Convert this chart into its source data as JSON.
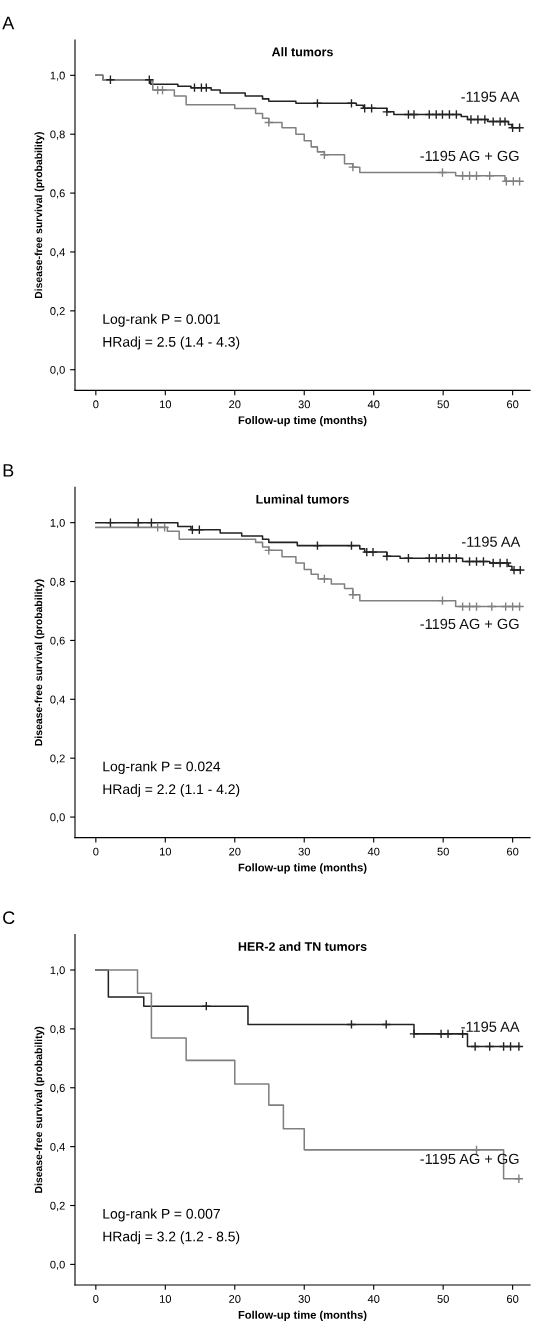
{
  "chart_data": [
    {
      "type": "step",
      "title": "All tumors",
      "xlabel": "Follow-up time (months)",
      "ylabel": "Disease-free survival (probability)",
      "xlim": [
        -3,
        62.5
      ],
      "xticks": [
        0,
        10,
        20,
        30,
        40,
        50,
        60
      ],
      "ylim": [
        -0.07,
        1.12
      ],
      "yticks": [
        {
          "value": 0.0,
          "label": "0,0"
        },
        {
          "value": 0.2,
          "label": "0,2"
        },
        {
          "value": 0.4,
          "label": "0,4"
        },
        {
          "value": 0.6,
          "label": "0,6"
        },
        {
          "value": 0.8,
          "label": "0,8"
        },
        {
          "value": 1.0,
          "label": "1,0"
        }
      ],
      "grid": false,
      "legend": false,
      "annotations": [
        "A",
        "Log-rank P = 0.001",
        "HRadj = 2.5 (1.4 - 4.3)"
      ],
      "series": [
        {
          "name": "-1195 AA",
          "color": "#222222",
          "x": [
            0,
            1,
            7.9,
            11.8,
            13.7,
            16.6,
            17.9,
            21.5,
            24,
            24.9,
            28.8,
            37.5,
            38.5,
            41.9,
            42.9,
            52.6,
            53.5,
            56.4,
            59.4,
            59.9,
            61
          ],
          "values": [
            1.0,
            0.985,
            0.97,
            0.963,
            0.958,
            0.95,
            0.94,
            0.93,
            0.92,
            0.912,
            0.905,
            0.898,
            0.888,
            0.876,
            0.867,
            0.86,
            0.85,
            0.843,
            0.833,
            0.822,
            0.822
          ]
        },
        {
          "type": "scatter",
          "marker": "cross",
          "color": "#222222",
          "x": [
            2.1,
            7.7,
            14.2,
            15.2,
            15.9,
            31.9,
            36.8,
            38.7,
            39.7,
            41.9,
            45,
            45.8,
            48,
            49,
            49.9,
            50.9,
            51.9,
            54,
            55,
            56,
            57.2,
            58.2,
            58.9,
            60,
            61
          ],
          "values": [
            0.985,
            0.985,
            0.958,
            0.958,
            0.958,
            0.905,
            0.905,
            0.888,
            0.888,
            0.876,
            0.867,
            0.867,
            0.867,
            0.867,
            0.867,
            0.867,
            0.867,
            0.85,
            0.85,
            0.85,
            0.843,
            0.843,
            0.843,
            0.822,
            0.822
          ]
        },
        {
          "name": "-1195 AG + GG",
          "color": "#808080",
          "x": [
            0,
            1,
            8.2,
            11.3,
            13,
            20,
            23,
            24,
            24.9,
            26.8,
            28.8,
            30,
            31,
            31.9,
            32.9,
            35.8,
            37,
            38,
            51.8,
            58.9,
            61
          ],
          "values": [
            1.0,
            0.985,
            0.95,
            0.93,
            0.9,
            0.887,
            0.87,
            0.854,
            0.84,
            0.822,
            0.8,
            0.778,
            0.757,
            0.74,
            0.73,
            0.7,
            0.688,
            0.67,
            0.659,
            0.64,
            0.64
          ]
        },
        {
          "type": "scatter",
          "marker": "cross",
          "color": "#808080",
          "x": [
            8.9,
            9.6,
            24.9,
            32.9,
            37,
            49.9,
            52.8,
            53.8,
            54.8,
            56.7,
            59.1,
            60.1,
            61
          ],
          "values": [
            0.95,
            0.95,
            0.84,
            0.73,
            0.688,
            0.67,
            0.659,
            0.659,
            0.659,
            0.659,
            0.64,
            0.64,
            0.64
          ]
        }
      ]
    },
    {
      "type": "step",
      "title": "Luminal tumors",
      "xlabel": "Follow-up time (months)",
      "ylabel": "Disease-free survival (probability)",
      "xlim": [
        -3,
        62.5
      ],
      "xticks": [
        0,
        10,
        20,
        30,
        40,
        50,
        60
      ],
      "ylim": [
        -0.07,
        1.12
      ],
      "yticks": [
        {
          "value": 0.0,
          "label": "0,0"
        },
        {
          "value": 0.2,
          "label": "0,2"
        },
        {
          "value": 0.4,
          "label": "0,4"
        },
        {
          "value": 0.6,
          "label": "0,6"
        },
        {
          "value": 0.8,
          "label": "0,8"
        },
        {
          "value": 1.0,
          "label": "1,0"
        }
      ],
      "grid": false,
      "legend": false,
      "annotations": [
        "B",
        "Log-rank P = 0.024",
        "HRadj = 2.2 (1.1 - 4.2)"
      ],
      "series": [
        {
          "name": "-1195 AA",
          "color": "#222222",
          "x": [
            0,
            11.8,
            13.7,
            17.9,
            21,
            24,
            24.9,
            29,
            38,
            38.7,
            41.9,
            43.8,
            52.8,
            56.7,
            59.4,
            59.9,
            61.1
          ],
          "values": [
            1.0,
            0.987,
            0.976,
            0.965,
            0.955,
            0.944,
            0.933,
            0.922,
            0.911,
            0.9,
            0.886,
            0.879,
            0.868,
            0.863,
            0.852,
            0.839,
            0.839
          ]
        },
        {
          "type": "scatter",
          "marker": "cross",
          "color": "#222222",
          "x": [
            2.1,
            6.1,
            8,
            13.9,
            14.9,
            31.9,
            36.8,
            39,
            39.9,
            41.9,
            45,
            48,
            49,
            49.9,
            50.9,
            51.9,
            53.8,
            54.8,
            55.8,
            57.2,
            58.2,
            59.2,
            60.2,
            61.1
          ],
          "values": [
            1.0,
            1.0,
            1.0,
            0.976,
            0.976,
            0.922,
            0.922,
            0.9,
            0.9,
            0.886,
            0.879,
            0.879,
            0.879,
            0.879,
            0.879,
            0.879,
            0.868,
            0.868,
            0.868,
            0.863,
            0.863,
            0.863,
            0.839,
            0.839
          ]
        },
        {
          "name": "-1195 AG + GG",
          "color": "#808080",
          "x": [
            0,
            10.3,
            12,
            23,
            24,
            24.9,
            26.8,
            28.8,
            30,
            31,
            32,
            33.9,
            35.8,
            37,
            38,
            51.8,
            61
          ],
          "values": [
            0.984,
            0.971,
            0.944,
            0.933,
            0.917,
            0.906,
            0.884,
            0.863,
            0.841,
            0.825,
            0.809,
            0.792,
            0.776,
            0.755,
            0.735,
            0.715,
            0.715
          ]
        },
        {
          "type": "scatter",
          "marker": "cross",
          "color": "#808080",
          "x": [
            8.9,
            9.9,
            24.9,
            32.9,
            37,
            49.9,
            52.8,
            53.8,
            54.8,
            57,
            59,
            60,
            61
          ],
          "values": [
            0.984,
            0.984,
            0.906,
            0.809,
            0.755,
            0.735,
            0.715,
            0.715,
            0.715,
            0.715,
            0.715,
            0.715,
            0.715
          ]
        }
      ]
    },
    {
      "type": "step",
      "title": "HER-2 and TN tumors",
      "xlabel": "Follow-up time (months)",
      "ylabel": "Disease-free survival (probability)",
      "xlim": [
        -3,
        62.5
      ],
      "xticks": [
        0,
        10,
        20,
        30,
        40,
        50,
        60
      ],
      "ylim": [
        -0.07,
        1.12
      ],
      "yticks": [
        {
          "value": 0.0,
          "label": "0,0"
        },
        {
          "value": 0.2,
          "label": "0,2"
        },
        {
          "value": 0.4,
          "label": "0,4"
        },
        {
          "value": 0.6,
          "label": "0,6"
        },
        {
          "value": 0.8,
          "label": "0,8"
        },
        {
          "value": 1.0,
          "label": "1,0"
        }
      ],
      "grid": false,
      "legend": false,
      "annotations": [
        "C",
        "Log-rank P = 0.007",
        "HRadj = 3.2 (1.2 - 8.5)"
      ],
      "series": [
        {
          "name": "-1195 AA",
          "color": "#222222",
          "x": [
            0,
            1.8,
            6.9,
            21.9,
            45.8,
            53.5,
            61
          ],
          "values": [
            1.0,
            0.908,
            0.877,
            0.815,
            0.783,
            0.74,
            0.74
          ]
        },
        {
          "type": "scatter",
          "marker": "cross",
          "color": "#222222",
          "x": [
            15.9,
            36.8,
            41.8,
            45.8,
            49.7,
            50.7,
            52.8,
            54.6,
            56.7,
            58.7,
            59.7,
            60.9
          ],
          "values": [
            0.877,
            0.815,
            0.815,
            0.783,
            0.783,
            0.783,
            0.783,
            0.74,
            0.74,
            0.74,
            0.74,
            0.74
          ]
        },
        {
          "name": "-1195 AG + GG",
          "color": "#808080",
          "x": [
            0,
            6,
            8,
            13,
            20,
            24.9,
            27,
            30,
            58.7,
            61
          ],
          "values": [
            1.0,
            0.921,
            0.769,
            0.693,
            0.613,
            0.541,
            0.461,
            0.389,
            0.291,
            0.291
          ]
        },
        {
          "type": "scatter",
          "marker": "cross",
          "color": "#808080",
          "x": [
            54.8,
            60.9
          ],
          "values": [
            0.389,
            0.291
          ]
        }
      ]
    }
  ]
}
